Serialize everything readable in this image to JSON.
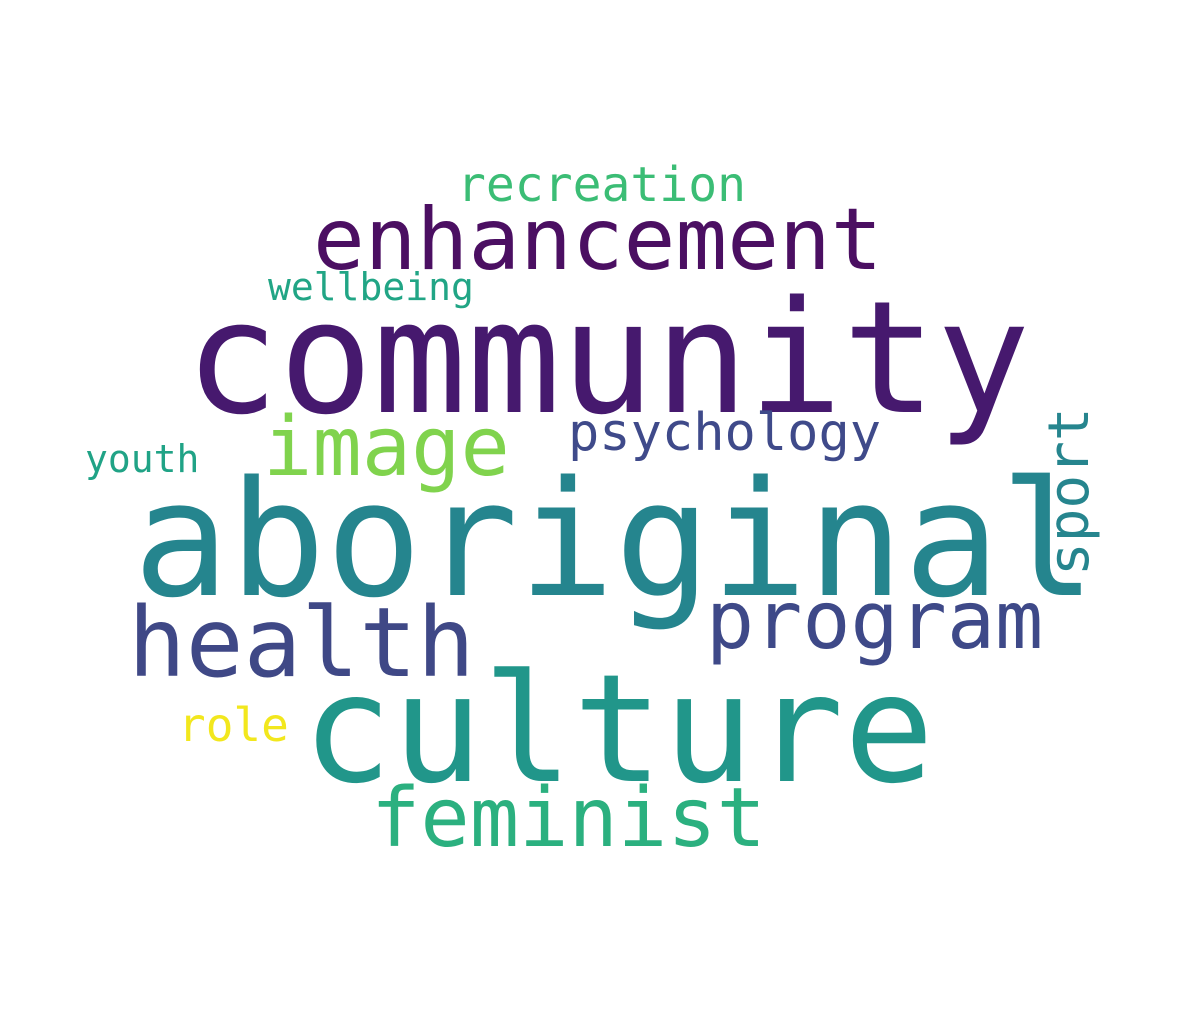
{
  "word_cloud": {
    "background": "#ffffff",
    "words": {
      "community": {
        "text": "community",
        "color": "#46196e"
      },
      "aboriginal": {
        "text": "aboriginal",
        "color": "#25858e"
      },
      "culture": {
        "text": "culture",
        "color": "#21968a"
      },
      "enhancement": {
        "text": "enhancement",
        "color": "#4b0f62"
      },
      "health": {
        "text": "health",
        "color": "#3f4886"
      },
      "program": {
        "text": "program",
        "color": "#3e4988"
      },
      "feminist": {
        "text": "feminist",
        "color": "#2bb07f"
      },
      "image": {
        "text": "image",
        "color": "#80d34d"
      },
      "psychology": {
        "text": "psychology",
        "color": "#3f4a8a"
      },
      "recreation": {
        "text": "recreation",
        "color": "#3bbd75"
      },
      "wellbeing": {
        "text": "wellbeing",
        "color": "#21a585"
      },
      "youth": {
        "text": "youth",
        "color": "#20a386"
      },
      "role": {
        "text": "role",
        "color": "#f2e71d"
      },
      "sport": {
        "text": "sport",
        "color": "#26858e"
      }
    }
  }
}
